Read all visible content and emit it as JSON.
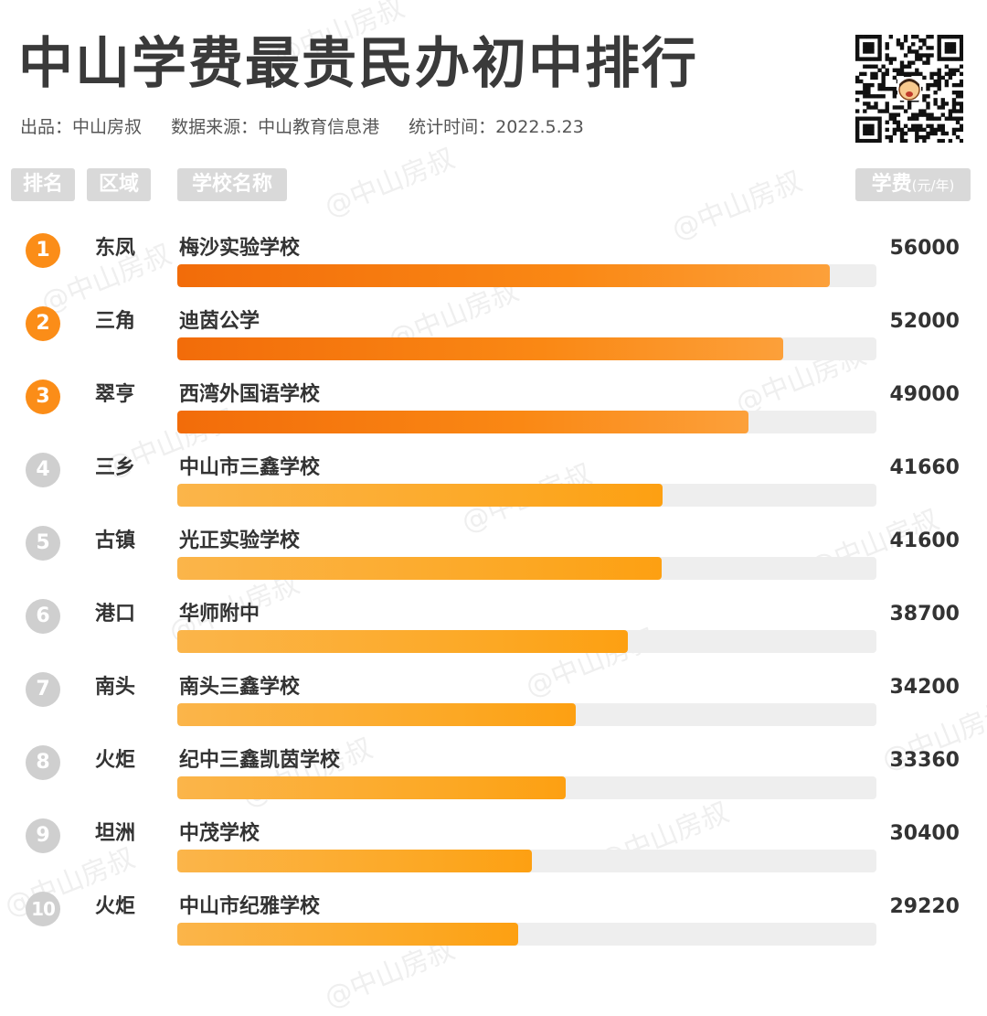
{
  "title": "中山学费最贵民办初中排行",
  "meta": {
    "producer": "出品：中山房叔",
    "source": "数据来源：中山教育信息港",
    "stat_time": "统计时间：2022.5.23"
  },
  "headers": {
    "rank": "排名",
    "region": "区域",
    "school": "学校名称",
    "fee": "学费",
    "fee_unit": "(元/年)"
  },
  "watermark": "@中山房叔",
  "colors": {
    "top3_rank": "#fb8d18",
    "other_rank": "#cfcfcf",
    "top3_bar": "#f57a0e",
    "other_bar": "#fcad30",
    "track": "#eeeeee"
  },
  "chart_data": {
    "type": "bar",
    "orientation": "horizontal",
    "title": "中山学费最贵民办初中排行",
    "ylabel": "学费(元/年)",
    "xlim": [
      0,
      60000
    ],
    "rows": [
      {
        "rank": "1",
        "region": "东凤",
        "school": "梅沙实验学校",
        "fee": "56000",
        "value": 56000
      },
      {
        "rank": "2",
        "region": "三角",
        "school": "迪茵公学",
        "fee": "52000",
        "value": 52000
      },
      {
        "rank": "3",
        "region": "翠亨",
        "school": "西湾外国语学校",
        "fee": "49000",
        "value": 49000
      },
      {
        "rank": "4",
        "region": "三乡",
        "school": "中山市三鑫学校",
        "fee": "41660",
        "value": 41660
      },
      {
        "rank": "5",
        "region": "古镇",
        "school": "光正实验学校",
        "fee": "41600",
        "value": 41600
      },
      {
        "rank": "6",
        "region": "港口",
        "school": "华师附中",
        "fee": "38700",
        "value": 38700
      },
      {
        "rank": "7",
        "region": "南头",
        "school": "南头三鑫学校",
        "fee": "34200",
        "value": 34200
      },
      {
        "rank": "8",
        "region": "火炬",
        "school": "纪中三鑫凯茵学校",
        "fee": "33360",
        "value": 33360
      },
      {
        "rank": "9",
        "region": "坦洲",
        "school": "中茂学校",
        "fee": "30400",
        "value": 30400
      },
      {
        "rank": "10",
        "region": "火炬",
        "school": "中山市纪雅学校",
        "fee": "29220",
        "value": 29220
      }
    ]
  }
}
